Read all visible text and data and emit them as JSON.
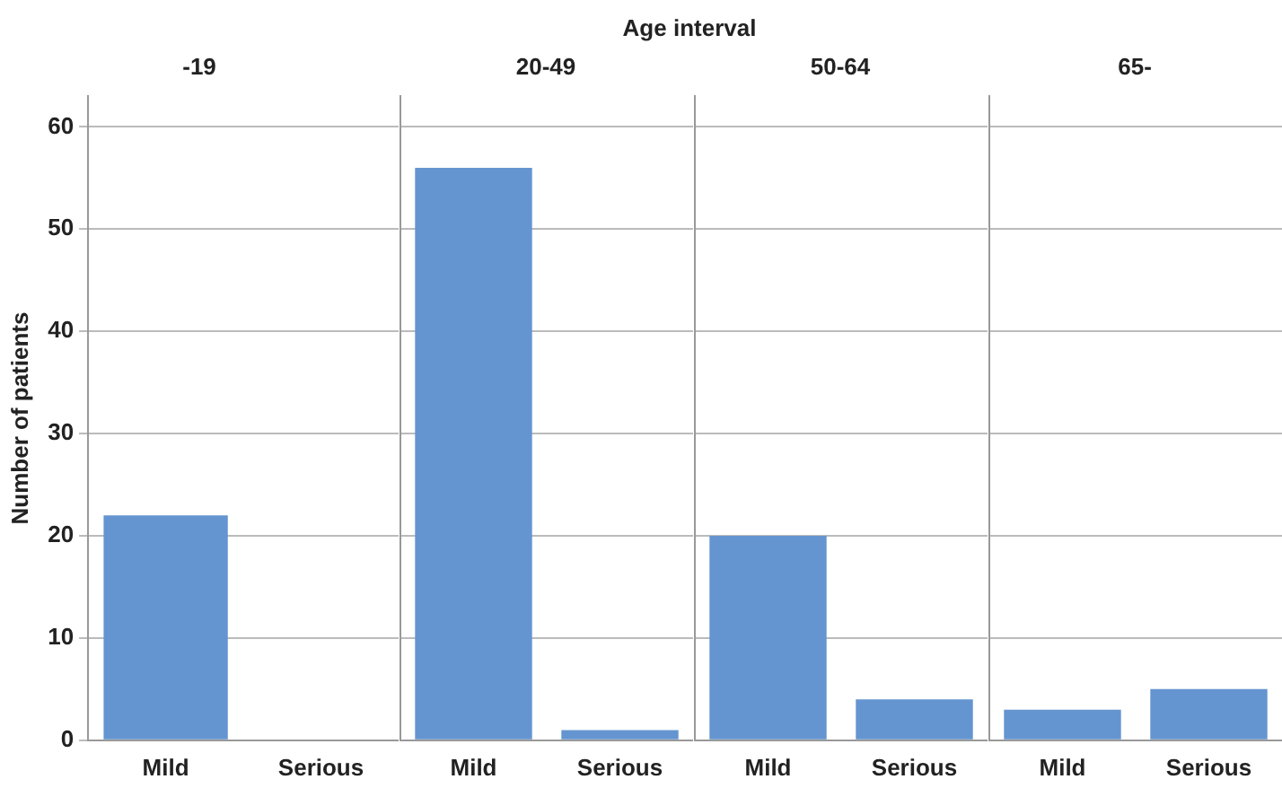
{
  "chart_data": [
    {
      "type": "bar",
      "title": "-19",
      "annotations": [
        "Age interval"
      ],
      "ylabel": "Number of patients",
      "categories": [
        "Mild",
        "Serious"
      ],
      "values": [
        22,
        0
      ],
      "color": "#6495d0",
      "ylim": [
        0,
        63
      ],
      "yticks": [
        0,
        10,
        20,
        30,
        40,
        50,
        60
      ],
      "grid": "y"
    },
    {
      "type": "bar",
      "title": "20-49",
      "categories": [
        "Mild",
        "Serious"
      ],
      "values": [
        56,
        1
      ],
      "color": "#6495d0",
      "ylim": [
        0,
        63
      ],
      "yticks": [
        0,
        10,
        20,
        30,
        40,
        50,
        60
      ],
      "grid": "y",
      "tick_labels": "x"
    },
    {
      "type": "bar",
      "title": "50-64",
      "categories": [
        "Mild",
        "Serious"
      ],
      "values": [
        20,
        4
      ],
      "color": "#6495d0",
      "ylim": [
        0,
        63
      ],
      "yticks": [
        0,
        10,
        20,
        30,
        40,
        50,
        60
      ],
      "grid": "y",
      "tick_labels": "x"
    },
    {
      "type": "bar",
      "title": "65-",
      "categories": [
        "Mild",
        "Serious"
      ],
      "values": [
        3,
        5
      ],
      "color": "#6495d0",
      "ylim": [
        0,
        63
      ],
      "yticks": [
        0,
        10,
        20,
        30,
        40,
        50,
        60
      ],
      "grid": "y",
      "tick_labels": "x"
    }
  ]
}
